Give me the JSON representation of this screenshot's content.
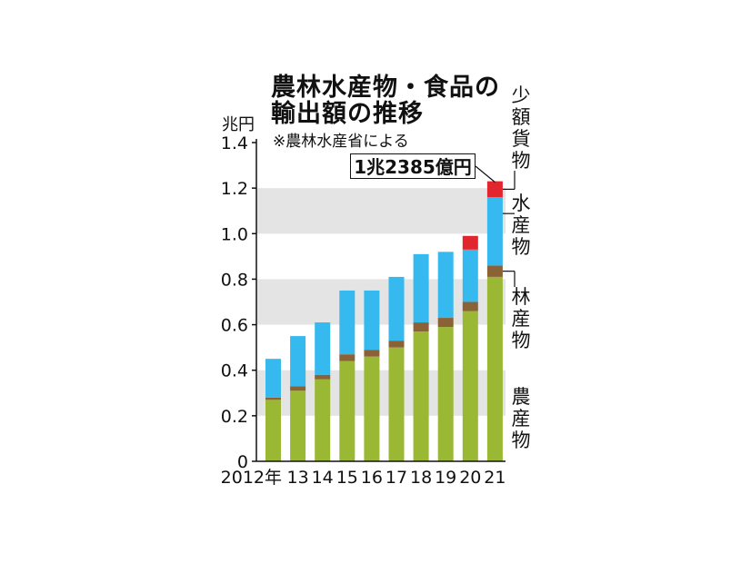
{
  "chart_data": {
    "type": "bar",
    "stacked": true,
    "title_lines": [
      "農林水産物・食品の",
      "輸出額の推移"
    ],
    "note": "※農林水産省による",
    "unit": "兆円",
    "ylim": [
      0,
      1.4
    ],
    "yticks": [
      "0",
      "0.2",
      "0.4",
      "0.6",
      "0.8",
      "1.0",
      "1.2",
      "1.4"
    ],
    "ytick_values": [
      0,
      0.2,
      0.4,
      0.6,
      0.8,
      1.0,
      1.2,
      1.4
    ],
    "categories": [
      "2012年",
      "13",
      "14",
      "15",
      "16",
      "17",
      "18",
      "19",
      "20",
      "21"
    ],
    "series": [
      {
        "name": "農産物",
        "color": "#9bb835",
        "values": [
          0.27,
          0.31,
          0.36,
          0.44,
          0.46,
          0.5,
          0.57,
          0.59,
          0.66,
          0.81
        ]
      },
      {
        "name": "林産物",
        "color": "#8a6236",
        "values": [
          0.01,
          0.02,
          0.02,
          0.03,
          0.03,
          0.03,
          0.04,
          0.04,
          0.04,
          0.05
        ]
      },
      {
        "name": "水産物",
        "color": "#35b9ee",
        "values": [
          0.17,
          0.22,
          0.23,
          0.28,
          0.26,
          0.28,
          0.3,
          0.29,
          0.23,
          0.3
        ]
      },
      {
        "name": "少額貨物",
        "color": "#e1262d",
        "values": [
          0,
          0,
          0,
          0,
          0,
          0,
          0,
          0,
          0.06,
          0.07
        ]
      }
    ],
    "annotation": "1兆2385億円",
    "gridbands": "alternating gray bands"
  }
}
